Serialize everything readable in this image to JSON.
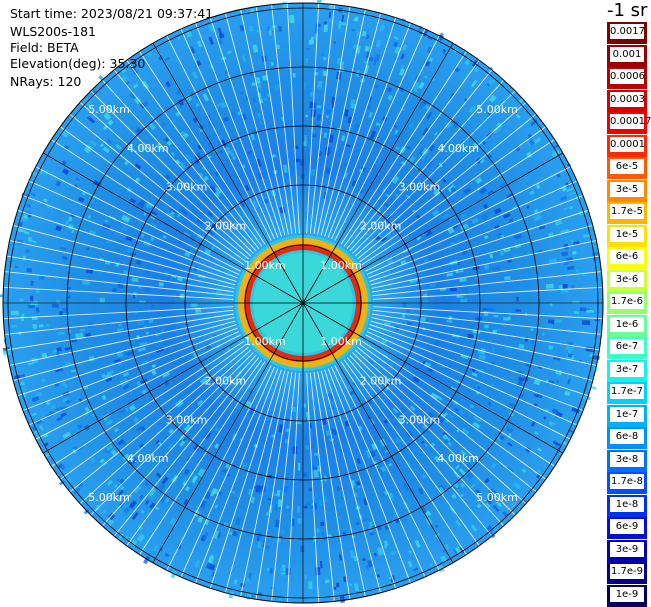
{
  "header": {
    "start_time": "Start time: 2023/08/21 09:37:41",
    "instrument": "WLS200s-181",
    "field": "Field: BETA",
    "elevation": "Elevation(deg): 35.30",
    "nrays": "NRays: 120"
  },
  "legend": {
    "unit_label": "-1 sr",
    "entries": [
      {
        "label": "0.0017",
        "color": "#7f0000"
      },
      {
        "label": "0.001",
        "color": "#9a0000"
      },
      {
        "label": "0.0006",
        "color": "#b80000"
      },
      {
        "label": "0.0003",
        "color": "#d60000"
      },
      {
        "label": "0.00017",
        "color": "#f00000"
      },
      {
        "label": "0.0001",
        "color": "#ff2a00"
      },
      {
        "label": "6e-5",
        "color": "#ff5a00"
      },
      {
        "label": "3e-5",
        "color": "#ff8a00"
      },
      {
        "label": "1.7e-5",
        "color": "#ffb400"
      },
      {
        "label": "1e-5",
        "color": "#ffe000"
      },
      {
        "label": "6e-6",
        "color": "#f5ff10"
      },
      {
        "label": "3e-6",
        "color": "#c8ff40"
      },
      {
        "label": "1.7e-6",
        "color": "#94ff6c"
      },
      {
        "label": "1e-6",
        "color": "#66ff98"
      },
      {
        "label": "6e-7",
        "color": "#3cffc6"
      },
      {
        "label": "3e-7",
        "color": "#18f0f0"
      },
      {
        "label": "1.7e-7",
        "color": "#00d0ff"
      },
      {
        "label": "1e-7",
        "color": "#00b0ff"
      },
      {
        "label": "6e-8",
        "color": "#0090ff"
      },
      {
        "label": "3e-8",
        "color": "#0070ff"
      },
      {
        "label": "1.7e-8",
        "color": "#0050ff"
      },
      {
        "label": "1e-8",
        "color": "#0030f0"
      },
      {
        "label": "6e-9",
        "color": "#0010d8"
      },
      {
        "label": "3e-9",
        "color": "#0000b8"
      },
      {
        "label": "1.7e-9",
        "color": "#00008c"
      },
      {
        "label": "1e-9",
        "color": "#000064"
      }
    ]
  },
  "plot": {
    "range_rings": [
      {
        "label": "1.00km"
      },
      {
        "label": "2.00km"
      },
      {
        "label": "3.00km"
      },
      {
        "label": "4.00km"
      },
      {
        "label": "5.00km"
      }
    ],
    "colors": {
      "far_field": "#1f8fe6",
      "near_field": "#3ad8d8",
      "aerosol_ring": "#ff8a00",
      "hot_ring": "#e81e00",
      "ray_lines": "#ffffff",
      "grid": "#000000"
    }
  }
}
